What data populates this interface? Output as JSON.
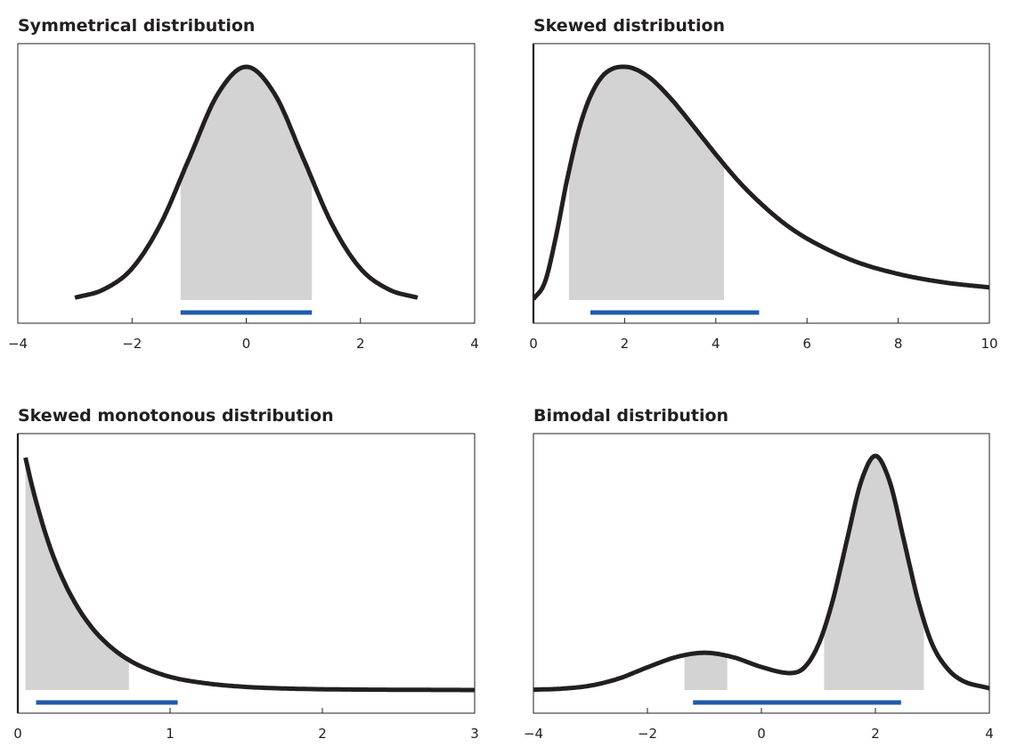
{
  "colors": {
    "curve": "#231f20",
    "fill": "#d3d3d3",
    "interval": "#1f5aa8",
    "frame": "#231f20"
  },
  "chart_data": [
    {
      "type": "area",
      "title": "Symmetrical distribution",
      "xlim": [
        -4,
        4
      ],
      "xticks": [
        -4,
        -2,
        0,
        2,
        4
      ],
      "tick_labels": [
        "−4",
        "−2",
        "0",
        "2",
        "4"
      ],
      "x": [
        -3,
        -2.5,
        -2,
        -1.5,
        -1,
        -0.5,
        0,
        0.5,
        1,
        1.5,
        2,
        2.5,
        3
      ],
      "y": [
        0.004,
        0.018,
        0.054,
        0.13,
        0.242,
        0.352,
        0.399,
        0.352,
        0.242,
        0.13,
        0.054,
        0.018,
        0.004
      ],
      "shaded": [
        [
          -1.15,
          1.15
        ]
      ],
      "interval": [
        -1.15,
        1.15
      ]
    },
    {
      "type": "area",
      "title": "Skewed distribution",
      "xlim": [
        0,
        10
      ],
      "xticks": [
        0,
        2,
        4,
        6,
        8,
        10
      ],
      "tick_labels": [
        "0",
        "2",
        "4",
        "6",
        "8",
        "10"
      ],
      "x": [
        0,
        0.25,
        0.5,
        0.75,
        1,
        1.25,
        1.5,
        1.75,
        2,
        2.5,
        3,
        3.5,
        4,
        4.5,
        5,
        5.5,
        6,
        7,
        8,
        9,
        10
      ],
      "y": [
        0.001,
        0.021,
        0.077,
        0.146,
        0.203,
        0.242,
        0.265,
        0.275,
        0.277,
        0.266,
        0.24,
        0.207,
        0.173,
        0.141,
        0.114,
        0.091,
        0.073,
        0.047,
        0.031,
        0.021,
        0.015
      ],
      "shaded": [
        [
          0.78,
          4.18
        ]
      ],
      "interval": [
        1.25,
        4.95
      ]
    },
    {
      "type": "area",
      "title": "Skewed monotonous distribution",
      "xlim": [
        0,
        3
      ],
      "xticks": [
        0,
        1,
        2,
        3
      ],
      "tick_labels": [
        "0",
        "1",
        "2",
        "3"
      ],
      "x": [
        0.05,
        0.1,
        0.2,
        0.3,
        0.4,
        0.5,
        0.6,
        0.7,
        0.8,
        1,
        1.25,
        1.5,
        1.75,
        2,
        2.5,
        3
      ],
      "y": [
        0.9,
        0.775,
        0.573,
        0.424,
        0.314,
        0.232,
        0.172,
        0.127,
        0.094,
        0.051,
        0.025,
        0.012,
        0.006,
        0.003,
        0.001,
        0.0
      ],
      "shaded": [
        [
          0.05,
          0.73
        ]
      ],
      "interval": [
        0.12,
        1.05
      ]
    },
    {
      "type": "area",
      "title": "Bimodal distribution",
      "xlim": [
        -4,
        4
      ],
      "xticks": [
        -4,
        -2,
        0,
        2,
        4
      ],
      "tick_labels": [
        "−4",
        "−2",
        "0",
        "2",
        "4"
      ],
      "x": [
        -4,
        -3.5,
        -3,
        -2.5,
        -2,
        -1.5,
        -1,
        -0.5,
        0,
        0.5,
        0.75,
        1,
        1.25,
        1.5,
        1.75,
        2,
        2.25,
        2.5,
        2.75,
        3,
        3.25,
        3.5,
        4
      ],
      "y": [
        0.001,
        0.004,
        0.013,
        0.034,
        0.067,
        0.097,
        0.11,
        0.097,
        0.068,
        0.05,
        0.066,
        0.134,
        0.263,
        0.442,
        0.615,
        0.691,
        0.615,
        0.442,
        0.263,
        0.134,
        0.066,
        0.03,
        0.005
      ],
      "shaded": [
        [
          -1.35,
          -0.6
        ],
        [
          1.1,
          2.85
        ]
      ],
      "interval": [
        -1.2,
        2.45
      ]
    }
  ]
}
